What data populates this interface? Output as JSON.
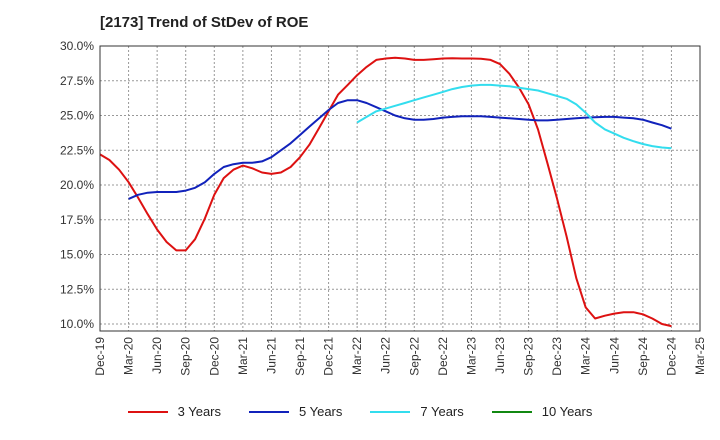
{
  "chart_data": {
    "type": "line",
    "title": "[2173]  Trend of StDev of ROE",
    "xlabel": "",
    "ylabel": "",
    "ylim": [
      9.5,
      30
    ],
    "yticks": [
      10.0,
      12.5,
      15.0,
      17.5,
      20.0,
      22.5,
      25.0,
      27.5,
      30.0
    ],
    "ytick_labels": [
      "10.0%",
      "12.5%",
      "15.0%",
      "17.5%",
      "20.0%",
      "22.5%",
      "25.0%",
      "27.5%",
      "30.0%"
    ],
    "categories": [
      "Dec-19",
      "Mar-20",
      "Jun-20",
      "Sep-20",
      "Dec-20",
      "Mar-21",
      "Jun-21",
      "Sep-21",
      "Dec-21",
      "Mar-22",
      "Jun-22",
      "Sep-22",
      "Dec-22",
      "Mar-23",
      "Jun-23",
      "Sep-23",
      "Dec-23",
      "Mar-24",
      "Jun-24",
      "Sep-24",
      "Dec-24",
      "Mar-25"
    ],
    "grid": true,
    "legend_position": "bottom",
    "series": [
      {
        "name": "3 Years",
        "color": "#dd1111",
        "x": [
          0,
          0.33,
          0.67,
          1,
          1.33,
          1.67,
          2,
          2.33,
          2.67,
          3,
          3.33,
          3.67,
          4,
          4.33,
          4.67,
          5,
          5.33,
          5.67,
          6,
          6.33,
          6.67,
          7,
          7.33,
          7.67,
          8,
          8.33,
          8.67,
          9,
          9.33,
          9.67,
          10,
          10.33,
          10.67,
          11,
          11.33,
          11.67,
          12,
          12.33,
          12.67,
          13,
          13.33,
          13.67,
          14,
          14.33,
          14.67,
          15,
          15.33,
          15.67,
          16,
          16.33,
          16.67,
          17,
          17.33,
          17.67,
          18,
          18.33,
          18.67,
          19,
          19.33,
          19.67,
          20
        ],
        "values": [
          22.2,
          21.8,
          21.1,
          20.2,
          19.1,
          17.9,
          16.8,
          15.9,
          15.3,
          15.3,
          16.1,
          17.6,
          19.3,
          20.5,
          21.1,
          21.4,
          21.2,
          20.9,
          20.8,
          20.9,
          21.3,
          22.0,
          22.9,
          24.1,
          25.3,
          26.5,
          27.2,
          27.9,
          28.5,
          29.0,
          29.1,
          29.15,
          29.1,
          29.0,
          29.0,
          29.05,
          29.1,
          29.12,
          29.1,
          29.1,
          29.08,
          29.0,
          28.7,
          28.0,
          27.0,
          25.8,
          24.0,
          21.5,
          19.0,
          16.3,
          13.3,
          11.2,
          10.4,
          10.6,
          10.75,
          10.85,
          10.85,
          10.7,
          10.4,
          10.0,
          9.85
        ]
      },
      {
        "name": "5 Years",
        "color": "#1122bb",
        "x": [
          1,
          1.33,
          1.67,
          2,
          2.33,
          2.67,
          3,
          3.33,
          3.67,
          4,
          4.33,
          4.67,
          5,
          5.33,
          5.67,
          6,
          6.33,
          6.67,
          7,
          7.33,
          7.67,
          8,
          8.33,
          8.67,
          9,
          9.33,
          9.67,
          10,
          10.33,
          10.67,
          11,
          11.33,
          11.67,
          12,
          12.33,
          12.67,
          13,
          13.33,
          13.67,
          14,
          14.33,
          14.67,
          15,
          15.33,
          15.67,
          16,
          16.33,
          16.67,
          17,
          17.33,
          17.67,
          18,
          18.33,
          18.67,
          19,
          19.33,
          19.67,
          20
        ],
        "values": [
          19.0,
          19.3,
          19.45,
          19.5,
          19.5,
          19.5,
          19.6,
          19.8,
          20.2,
          20.8,
          21.3,
          21.5,
          21.6,
          21.6,
          21.7,
          22.0,
          22.5,
          23.0,
          23.6,
          24.2,
          24.8,
          25.4,
          25.9,
          26.1,
          26.1,
          25.9,
          25.6,
          25.3,
          25.0,
          24.8,
          24.7,
          24.7,
          24.75,
          24.85,
          24.9,
          24.95,
          24.95,
          24.95,
          24.9,
          24.85,
          24.8,
          24.75,
          24.7,
          24.65,
          24.65,
          24.7,
          24.75,
          24.8,
          24.85,
          24.88,
          24.9,
          24.9,
          24.85,
          24.8,
          24.7,
          24.5,
          24.3,
          24.05
        ]
      },
      {
        "name": "7 Years",
        "color": "#33ddee",
        "x": [
          9,
          9.33,
          9.67,
          10,
          10.33,
          10.67,
          11,
          11.33,
          11.67,
          12,
          12.33,
          12.67,
          13,
          13.33,
          13.67,
          14,
          14.33,
          14.67,
          15,
          15.33,
          15.67,
          16,
          16.33,
          16.67,
          17,
          17.33,
          17.67,
          18,
          18.33,
          18.67,
          19,
          19.33,
          19.67,
          20
        ],
        "values": [
          24.5,
          24.9,
          25.3,
          25.5,
          25.7,
          25.9,
          26.1,
          26.3,
          26.5,
          26.7,
          26.9,
          27.05,
          27.15,
          27.2,
          27.2,
          27.15,
          27.1,
          27.0,
          26.9,
          26.8,
          26.6,
          26.4,
          26.2,
          25.8,
          25.2,
          24.5,
          24.0,
          23.7,
          23.4,
          23.15,
          22.95,
          22.8,
          22.7,
          22.65
        ]
      },
      {
        "name": "10 Years",
        "color": "#118811",
        "x": [],
        "values": []
      }
    ]
  }
}
